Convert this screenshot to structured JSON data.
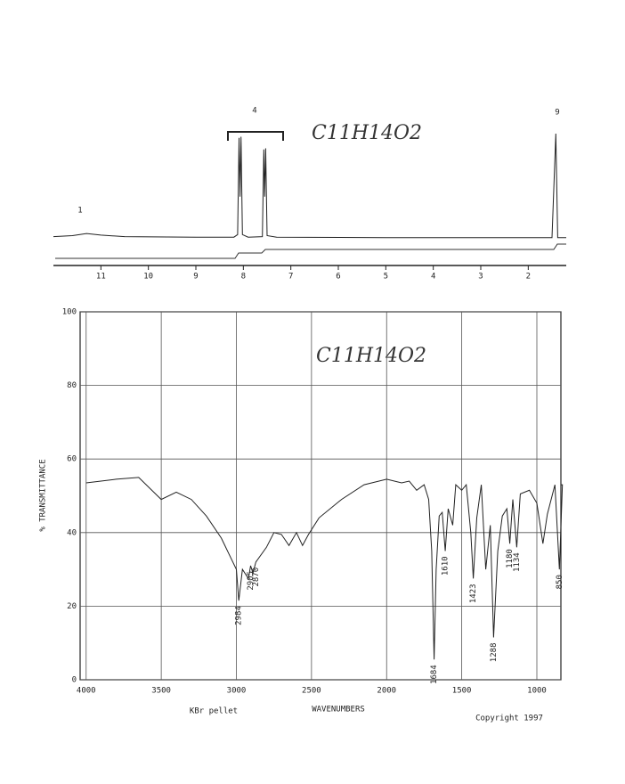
{
  "chart_data": [
    {
      "type": "line",
      "color": "#222",
      "x": [
        12.0,
        11.6,
        11.3,
        11.0,
        10.5,
        9.0,
        8.2,
        8.12,
        8.09,
        8.07,
        8.05,
        8.02,
        7.9,
        7.6,
        7.57,
        7.55,
        7.53,
        7.5,
        7.3,
        5.0,
        2.0,
        1.5,
        1.42,
        1.38,
        1.2
      ],
      "values": [
        2,
        3,
        5,
        3.5,
        2,
        1.5,
        1.5,
        4,
        96,
        40,
        97,
        4,
        1.5,
        2,
        85,
        40,
        86,
        3,
        1.5,
        1,
        1,
        1,
        100,
        1,
        1
      ],
      "xlim": [
        12,
        1.2
      ],
      "ylim": [
        0,
        100
      ],
      "xticks": [
        11,
        10,
        9,
        8,
        7,
        6,
        5,
        4,
        3,
        2
      ],
      "annotations": [
        "1",
        "4",
        "9"
      ],
      "formula": "C11H14O2"
    },
    {
      "type": "line",
      "color": "#222",
      "x": [
        4000,
        3800,
        3650,
        3500,
        3400,
        3300,
        3200,
        3100,
        3000,
        2984,
        2960,
        2920,
        2905,
        2890,
        2870,
        2800,
        2750,
        2700,
        2650,
        2600,
        2560,
        2520,
        2450,
        2300,
        2150,
        2000,
        1900,
        1850,
        1800,
        1750,
        1720,
        1700,
        1684,
        1670,
        1650,
        1630,
        1610,
        1590,
        1560,
        1540,
        1500,
        1470,
        1440,
        1423,
        1400,
        1370,
        1340,
        1310,
        1288,
        1260,
        1230,
        1200,
        1180,
        1160,
        1134,
        1110,
        1050,
        1000,
        960,
        930,
        880,
        850,
        830,
        840
      ],
      "values": [
        53.5,
        54.5,
        55,
        49,
        51,
        49,
        44.5,
        38.5,
        30,
        21.5,
        30,
        27.5,
        31,
        29,
        32,
        36,
        40,
        39.5,
        36.5,
        40,
        36.5,
        39.5,
        44,
        49,
        53,
        54.5,
        53.5,
        54,
        51.5,
        53,
        49,
        35,
        5.5,
        30,
        44.5,
        45.5,
        35,
        46.5,
        42,
        53,
        51.5,
        53,
        40,
        27.5,
        44,
        53,
        30,
        42,
        11.5,
        35,
        44.5,
        46.5,
        37,
        49,
        36,
        50.5,
        51.5,
        48,
        37,
        45,
        53,
        30,
        53,
        53
      ],
      "xlim": [
        4040,
        840
      ],
      "ylim": [
        0,
        100
      ],
      "xticks": [
        4000,
        3500,
        3000,
        2500,
        2000,
        1500,
        1000
      ],
      "yticks": [
        0,
        20,
        40,
        60,
        80,
        100
      ],
      "grid": true,
      "peak_labels": [
        2984,
        2905,
        2870,
        1684,
        1610,
        1423,
        1288,
        1180,
        1134,
        850
      ],
      "ylabel": "% TRANSMITTANCE",
      "xlabel": "WAVENUMBERS",
      "sample": "KBr pellet",
      "copyright": "Copyright 1997",
      "formula": "C11H14O2"
    }
  ]
}
